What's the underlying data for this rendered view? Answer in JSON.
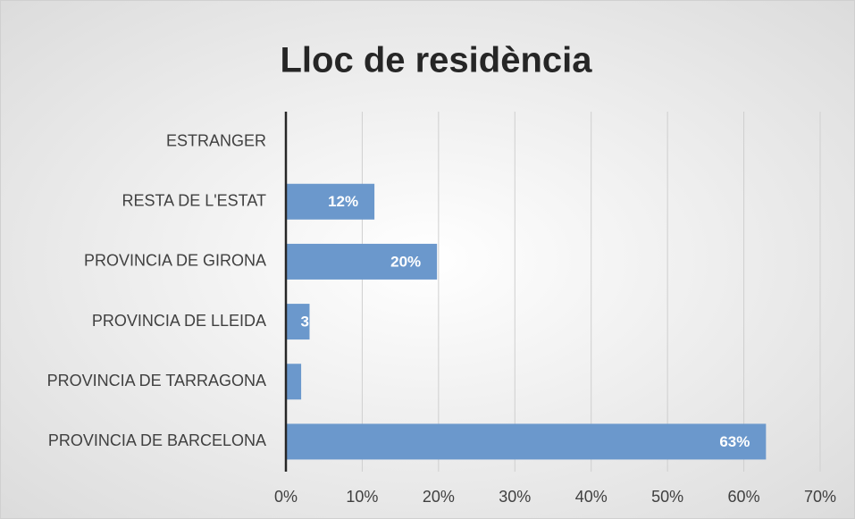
{
  "chart_data": {
    "type": "hbar",
    "title": "Lloc de residència",
    "categories": [
      "ESTRANGER",
      "RESTA DE L'ESTAT",
      "PROVINCIA DE GIRONA",
      "PROVINCIA DE LLEIDA",
      "PROVINCIA DE TARRAGONA",
      "PROVINCIA DE BARCELONA"
    ],
    "values": [
      0,
      11.6,
      19.8,
      3.1,
      2,
      62.9
    ],
    "value_labels": [
      null,
      "12%",
      "20%",
      "3",
      null,
      "63%"
    ],
    "color": "#6b98cc",
    "xlim": [
      0,
      70
    ],
    "xticks": [
      {
        "value": 0,
        "label": "0%"
      },
      {
        "value": 10,
        "label": "10%"
      },
      {
        "value": 20,
        "label": "20%"
      },
      {
        "value": 30,
        "label": "30%"
      },
      {
        "value": 40,
        "label": "40%"
      },
      {
        "value": 50,
        "label": "50%"
      },
      {
        "value": 60,
        "label": "60%"
      },
      {
        "value": 70,
        "label": "70%"
      }
    ],
    "grid": true
  }
}
